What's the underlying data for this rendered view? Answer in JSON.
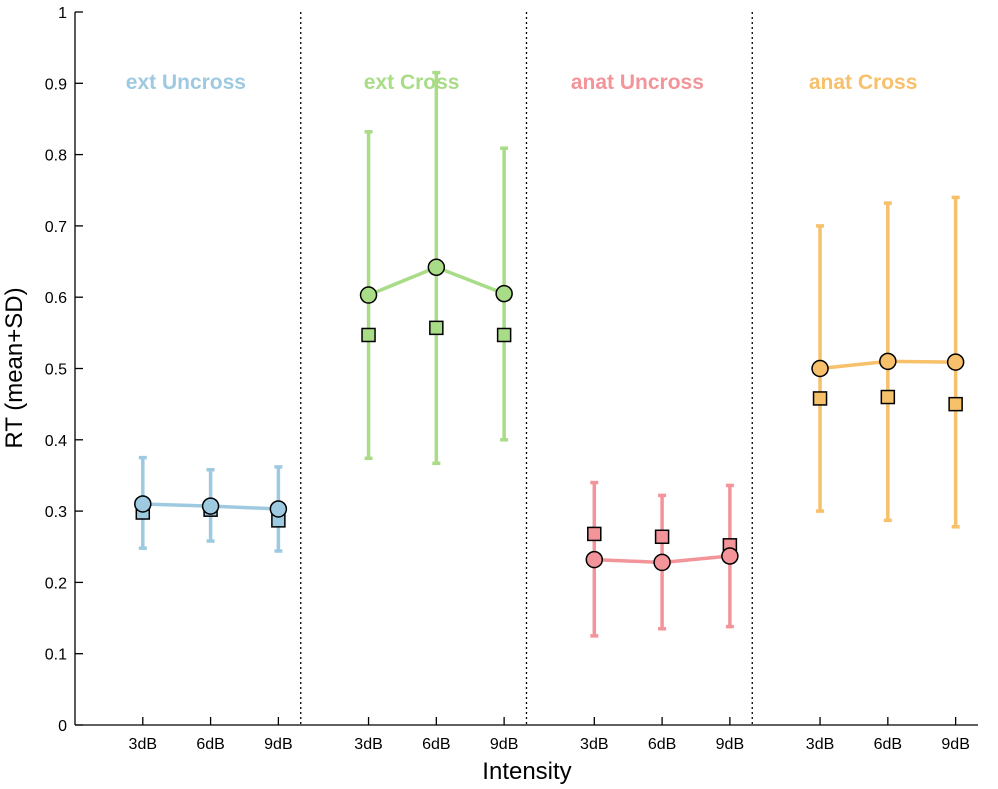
{
  "chart_data": {
    "type": "line",
    "xlabel": "Intensity",
    "ylabel": "RT (mean+SD)",
    "ylim": [
      0,
      1
    ],
    "yticks": [
      "0",
      "0.1",
      "0.2",
      "0.3",
      "0.4",
      "0.5",
      "0.6",
      "0.7",
      "0.8",
      "0.9",
      "1"
    ],
    "categories": [
      "3dB",
      "6dB",
      "9dB"
    ],
    "grid": false,
    "groups": [
      {
        "title": "ext Uncross",
        "color": "#9ecae1",
        "circle_mean": [
          0.31,
          0.307,
          0.303
        ],
        "square_mean": [
          0.298,
          0.302,
          0.287
        ],
        "err_low": [
          0.248,
          0.258,
          0.244
        ],
        "err_high": [
          0.375,
          0.358,
          0.362
        ]
      },
      {
        "title": "ext Cross",
        "color": "#a9dc87",
        "circle_mean": [
          0.603,
          0.642,
          0.605
        ],
        "square_mean": [
          0.547,
          0.557,
          0.547
        ],
        "err_low": [
          0.374,
          0.367,
          0.4
        ],
        "err_high": [
          0.832,
          0.915,
          0.809
        ]
      },
      {
        "title": "anat Uncross",
        "color": "#f29499",
        "circle_mean": [
          0.232,
          0.228,
          0.237
        ],
        "square_mean": [
          0.268,
          0.264,
          0.252
        ],
        "err_low": [
          0.125,
          0.135,
          0.138
        ],
        "err_high": [
          0.34,
          0.322,
          0.336
        ]
      },
      {
        "title": "anat Cross",
        "color": "#f7c06b",
        "circle_mean": [
          0.5,
          0.51,
          0.509
        ],
        "square_mean": [
          0.458,
          0.46,
          0.45
        ],
        "err_low": [
          0.3,
          0.287,
          0.278
        ],
        "err_high": [
          0.7,
          0.732,
          0.74
        ]
      }
    ]
  }
}
